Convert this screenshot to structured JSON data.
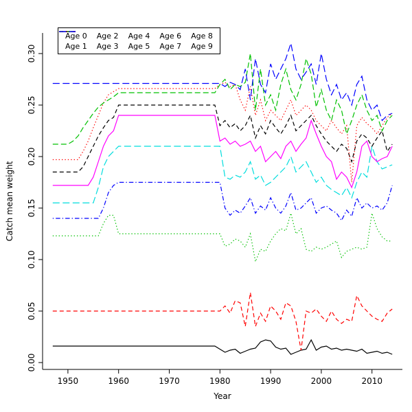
{
  "figure": {
    "background": "#ffffff",
    "plot_frame": "L-shaped axes, no grid"
  },
  "chart_data": {
    "type": "line",
    "title": "",
    "xlabel": "Year",
    "ylabel": "Catch mean weight",
    "xlim": [
      1945,
      2016
    ],
    "ylim": [
      -0.005,
      0.32
    ],
    "grid": false,
    "legend_position": "top-left",
    "legend_layout": {
      "rows": 2,
      "columns": 5
    },
    "x_ticks": [
      1950,
      1960,
      1970,
      1980,
      1990,
      2000,
      2010
    ],
    "x_tick_labels": [
      "1950",
      "1960",
      "1970",
      "1980",
      "1990",
      "2000",
      "2010"
    ],
    "y_ticks": [
      0.0,
      0.05,
      0.1,
      0.15,
      0.2,
      0.25,
      0.3
    ],
    "y_tick_labels": [
      "0.00",
      "0.05",
      "0.10",
      "0.15",
      "0.20",
      "0.25",
      "0.30"
    ],
    "x": [
      1947,
      1948,
      1949,
      1950,
      1951,
      1952,
      1953,
      1954,
      1955,
      1956,
      1957,
      1958,
      1959,
      1960,
      1961,
      1962,
      1963,
      1964,
      1965,
      1966,
      1967,
      1968,
      1969,
      1970,
      1971,
      1972,
      1973,
      1974,
      1975,
      1976,
      1977,
      1978,
      1979,
      1980,
      1981,
      1982,
      1983,
      1984,
      1985,
      1986,
      1987,
      1988,
      1989,
      1990,
      1991,
      1992,
      1993,
      1994,
      1995,
      1996,
      1997,
      1998,
      1999,
      2000,
      2001,
      2002,
      2003,
      2004,
      2005,
      2006,
      2007,
      2008,
      2009,
      2010,
      2011,
      2012,
      2013,
      2014
    ],
    "series": [
      {
        "name": "Age 0",
        "color": "#000000",
        "dash": "solid",
        "values": [
          0.016,
          0.016,
          0.016,
          0.016,
          0.016,
          0.016,
          0.016,
          0.016,
          0.016,
          0.016,
          0.016,
          0.016,
          0.016,
          0.016,
          0.016,
          0.016,
          0.016,
          0.016,
          0.016,
          0.016,
          0.016,
          0.016,
          0.016,
          0.016,
          0.016,
          0.016,
          0.016,
          0.016,
          0.016,
          0.016,
          0.016,
          0.016,
          0.016,
          0.013,
          0.01,
          0.012,
          0.013,
          0.009,
          0.011,
          0.013,
          0.014,
          0.02,
          0.022,
          0.021,
          0.015,
          0.013,
          0.014,
          0.008,
          0.01,
          0.012,
          0.013,
          0.022,
          0.012,
          0.015,
          0.016,
          0.013,
          0.014,
          0.012,
          0.013,
          0.012,
          0.011,
          0.013,
          0.009,
          0.01,
          0.011,
          0.009,
          0.01,
          0.008
        ]
      },
      {
        "name": "Age 1",
        "color": "#FF0000",
        "dash": "dashed",
        "values": [
          0.05,
          0.05,
          0.05,
          0.05,
          0.05,
          0.05,
          0.05,
          0.05,
          0.05,
          0.05,
          0.05,
          0.05,
          0.05,
          0.05,
          0.05,
          0.05,
          0.05,
          0.05,
          0.05,
          0.05,
          0.05,
          0.05,
          0.05,
          0.05,
          0.05,
          0.05,
          0.05,
          0.05,
          0.05,
          0.05,
          0.05,
          0.05,
          0.05,
          0.05,
          0.055,
          0.048,
          0.06,
          0.058,
          0.035,
          0.068,
          0.035,
          0.048,
          0.04,
          0.055,
          0.05,
          0.042,
          0.058,
          0.055,
          0.04,
          0.012,
          0.05,
          0.048,
          0.052,
          0.045,
          0.04,
          0.05,
          0.042,
          0.038,
          0.042,
          0.04,
          0.065,
          0.055,
          0.05,
          0.045,
          0.042,
          0.04,
          0.048,
          0.052
        ]
      },
      {
        "name": "Age 2",
        "color": "#00C000",
        "dash": "dotted",
        "values": [
          0.123,
          0.123,
          0.123,
          0.123,
          0.123,
          0.123,
          0.123,
          0.123,
          0.123,
          0.123,
          0.135,
          0.143,
          0.143,
          0.125,
          0.125,
          0.125,
          0.125,
          0.125,
          0.125,
          0.125,
          0.125,
          0.125,
          0.125,
          0.125,
          0.125,
          0.125,
          0.125,
          0.125,
          0.125,
          0.125,
          0.125,
          0.125,
          0.125,
          0.125,
          0.113,
          0.115,
          0.12,
          0.118,
          0.112,
          0.125,
          0.098,
          0.11,
          0.108,
          0.118,
          0.125,
          0.13,
          0.128,
          0.145,
          0.125,
          0.13,
          0.11,
          0.108,
          0.112,
          0.11,
          0.112,
          0.115,
          0.118,
          0.102,
          0.108,
          0.11,
          0.112,
          0.11,
          0.112,
          0.145,
          0.13,
          0.122,
          0.118,
          0.118
        ]
      },
      {
        "name": "Age 3",
        "color": "#0000FF",
        "dash": "dotdash",
        "values": [
          0.14,
          0.14,
          0.14,
          0.14,
          0.14,
          0.14,
          0.14,
          0.14,
          0.14,
          0.14,
          0.15,
          0.165,
          0.172,
          0.175,
          0.175,
          0.175,
          0.175,
          0.175,
          0.175,
          0.175,
          0.175,
          0.175,
          0.175,
          0.175,
          0.175,
          0.175,
          0.175,
          0.175,
          0.175,
          0.175,
          0.175,
          0.175,
          0.175,
          0.175,
          0.15,
          0.143,
          0.148,
          0.145,
          0.152,
          0.16,
          0.145,
          0.152,
          0.148,
          0.16,
          0.15,
          0.145,
          0.152,
          0.165,
          0.148,
          0.15,
          0.155,
          0.16,
          0.145,
          0.15,
          0.152,
          0.148,
          0.145,
          0.138,
          0.148,
          0.142,
          0.16,
          0.15,
          0.155,
          0.15,
          0.152,
          0.148,
          0.155,
          0.172
        ]
      },
      {
        "name": "Age 4",
        "color": "#00DDDD",
        "dash": "longdash",
        "values": [
          0.155,
          0.155,
          0.155,
          0.155,
          0.155,
          0.155,
          0.155,
          0.155,
          0.155,
          0.17,
          0.19,
          0.2,
          0.205,
          0.21,
          0.21,
          0.21,
          0.21,
          0.21,
          0.21,
          0.21,
          0.21,
          0.21,
          0.21,
          0.21,
          0.21,
          0.21,
          0.21,
          0.21,
          0.21,
          0.21,
          0.21,
          0.21,
          0.21,
          0.21,
          0.18,
          0.178,
          0.182,
          0.18,
          0.185,
          0.195,
          0.178,
          0.182,
          0.172,
          0.175,
          0.18,
          0.185,
          0.19,
          0.2,
          0.185,
          0.19,
          0.195,
          0.185,
          0.175,
          0.18,
          0.172,
          0.168,
          0.165,
          0.162,
          0.17,
          0.16,
          0.175,
          0.185,
          0.18,
          0.21,
          0.195,
          0.188,
          0.19,
          0.192
        ]
      },
      {
        "name": "Age 5",
        "color": "#FF00FF",
        "dash": "solid",
        "values": [
          0.172,
          0.172,
          0.172,
          0.172,
          0.172,
          0.172,
          0.172,
          0.172,
          0.18,
          0.195,
          0.21,
          0.22,
          0.225,
          0.24,
          0.24,
          0.24,
          0.24,
          0.24,
          0.24,
          0.24,
          0.24,
          0.24,
          0.24,
          0.24,
          0.24,
          0.24,
          0.24,
          0.24,
          0.24,
          0.24,
          0.24,
          0.24,
          0.24,
          0.215,
          0.218,
          0.212,
          0.215,
          0.21,
          0.212,
          0.215,
          0.205,
          0.21,
          0.195,
          0.2,
          0.205,
          0.198,
          0.21,
          0.215,
          0.205,
          0.212,
          0.218,
          0.235,
          0.222,
          0.21,
          0.2,
          0.195,
          0.178,
          0.185,
          0.18,
          0.17,
          0.185,
          0.21,
          0.215,
          0.2,
          0.195,
          0.198,
          0.2,
          0.21
        ]
      },
      {
        "name": "Age 6",
        "color": "#000000",
        "dash": "dashed",
        "values": [
          0.185,
          0.185,
          0.185,
          0.185,
          0.185,
          0.185,
          0.19,
          0.2,
          0.21,
          0.22,
          0.228,
          0.235,
          0.238,
          0.25,
          0.25,
          0.25,
          0.25,
          0.25,
          0.25,
          0.25,
          0.25,
          0.25,
          0.25,
          0.25,
          0.25,
          0.25,
          0.25,
          0.25,
          0.25,
          0.25,
          0.25,
          0.25,
          0.25,
          0.23,
          0.235,
          0.228,
          0.232,
          0.225,
          0.23,
          0.24,
          0.218,
          0.23,
          0.222,
          0.235,
          0.228,
          0.222,
          0.23,
          0.24,
          0.225,
          0.23,
          0.235,
          0.24,
          0.23,
          0.222,
          0.215,
          0.21,
          0.205,
          0.212,
          0.208,
          0.195,
          0.215,
          0.222,
          0.218,
          0.21,
          0.218,
          0.225,
          0.205,
          0.212
        ]
      },
      {
        "name": "Age 7",
        "color": "#FF0000",
        "dash": "dotted",
        "values": [
          0.197,
          0.197,
          0.197,
          0.197,
          0.197,
          0.197,
          0.205,
          0.215,
          0.228,
          0.24,
          0.252,
          0.26,
          0.263,
          0.266,
          0.266,
          0.266,
          0.266,
          0.266,
          0.266,
          0.266,
          0.266,
          0.266,
          0.266,
          0.266,
          0.266,
          0.266,
          0.266,
          0.266,
          0.266,
          0.266,
          0.266,
          0.266,
          0.266,
          0.27,
          0.272,
          0.268,
          0.27,
          0.255,
          0.245,
          0.268,
          0.24,
          0.255,
          0.235,
          0.245,
          0.24,
          0.235,
          0.245,
          0.255,
          0.24,
          0.245,
          0.25,
          0.245,
          0.235,
          0.23,
          0.225,
          0.235,
          0.228,
          0.222,
          0.23,
          0.175,
          0.23,
          0.238,
          0.232,
          0.228,
          0.222,
          0.23,
          0.238,
          0.242
        ]
      },
      {
        "name": "Age 8",
        "color": "#00C000",
        "dash": "mediumdash",
        "values": [
          0.212,
          0.212,
          0.212,
          0.212,
          0.215,
          0.22,
          0.228,
          0.235,
          0.242,
          0.248,
          0.252,
          0.255,
          0.258,
          0.262,
          0.262,
          0.262,
          0.262,
          0.262,
          0.262,
          0.262,
          0.262,
          0.262,
          0.262,
          0.262,
          0.262,
          0.262,
          0.262,
          0.262,
          0.262,
          0.262,
          0.262,
          0.262,
          0.262,
          0.27,
          0.275,
          0.265,
          0.27,
          0.268,
          0.272,
          0.3,
          0.245,
          0.285,
          0.25,
          0.26,
          0.245,
          0.27,
          0.285,
          0.265,
          0.255,
          0.27,
          0.295,
          0.28,
          0.248,
          0.265,
          0.245,
          0.235,
          0.255,
          0.245,
          0.222,
          0.235,
          0.25,
          0.26,
          0.245,
          0.235,
          0.24,
          0.225,
          0.235,
          0.24
        ]
      },
      {
        "name": "Age 9",
        "color": "#0000FF",
        "dash": "longdash",
        "values": [
          0.271,
          0.271,
          0.271,
          0.271,
          0.271,
          0.271,
          0.271,
          0.271,
          0.271,
          0.271,
          0.271,
          0.271,
          0.271,
          0.271,
          0.271,
          0.271,
          0.271,
          0.271,
          0.271,
          0.271,
          0.271,
          0.271,
          0.271,
          0.271,
          0.271,
          0.271,
          0.271,
          0.271,
          0.271,
          0.271,
          0.271,
          0.271,
          0.271,
          0.271,
          0.268,
          0.272,
          0.27,
          0.265,
          0.285,
          0.255,
          0.295,
          0.27,
          0.262,
          0.29,
          0.275,
          0.285,
          0.295,
          0.31,
          0.285,
          0.275,
          0.282,
          0.29,
          0.27,
          0.3,
          0.275,
          0.26,
          0.27,
          0.255,
          0.262,
          0.25,
          0.27,
          0.278,
          0.255,
          0.245,
          0.25,
          0.235,
          0.24,
          0.242
        ]
      }
    ]
  }
}
